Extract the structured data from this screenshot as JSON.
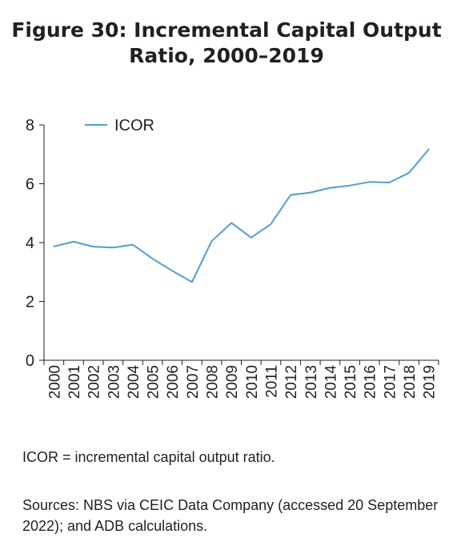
{
  "title_lines": [
    "Figure 30: Incremental Capital Output",
    "Ratio, 2000–2019"
  ],
  "footnote": "ICOR = incremental capital output ratio.",
  "sources": "Sources: NBS via CEIC Data Company (accessed 20 September 2022); and ADB calculations.",
  "chart_data": {
    "type": "line",
    "title": "Figure 30: Incremental Capital Output Ratio, 2000–2019",
    "xlabel": "",
    "ylabel": "",
    "categories": [
      "2000",
      "2001",
      "2002",
      "2003",
      "2004",
      "2005",
      "2006",
      "2007",
      "2008",
      "2009",
      "2010",
      "2011",
      "2012",
      "2013",
      "2014",
      "2015",
      "2016",
      "2017",
      "2018",
      "2019"
    ],
    "series": [
      {
        "name": "ICOR",
        "color": "#4f9fcf",
        "values": [
          3.87,
          4.03,
          3.86,
          3.83,
          3.93,
          3.45,
          3.04,
          2.66,
          4.05,
          4.67,
          4.17,
          4.63,
          5.62,
          5.7,
          5.86,
          5.94,
          6.06,
          6.04,
          6.37,
          7.17
        ]
      }
    ],
    "ylim": [
      0,
      8
    ],
    "yticks": [
      0,
      2,
      4,
      6,
      8
    ],
    "grid": false,
    "legend": "top-left"
  }
}
